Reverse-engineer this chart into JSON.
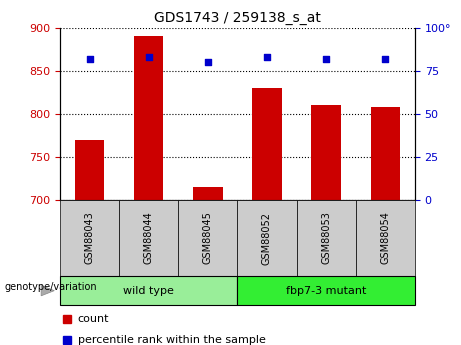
{
  "title": "GDS1743 / 259138_s_at",
  "categories": [
    "GSM88043",
    "GSM88044",
    "GSM88045",
    "GSM88052",
    "GSM88053",
    "GSM88054"
  ],
  "count_values": [
    770,
    890,
    715,
    830,
    810,
    808
  ],
  "percentile_values": [
    82,
    83,
    80,
    83,
    82,
    82
  ],
  "ylim_left": [
    700,
    900
  ],
  "ylim_right": [
    0,
    100
  ],
  "yticks_left": [
    700,
    750,
    800,
    850,
    900
  ],
  "yticks_right": [
    0,
    25,
    50,
    75,
    100
  ],
  "bar_color": "#cc0000",
  "dot_color": "#0000cc",
  "bar_bottom": 700,
  "groups": [
    {
      "label": "wild type",
      "start": 0,
      "end": 2,
      "color": "#99ee99"
    },
    {
      "label": "fbp7-3 mutant",
      "start": 3,
      "end": 5,
      "color": "#33ee33"
    }
  ],
  "group_label": "genotype/variation",
  "legend_count_label": "count",
  "legend_percentile_label": "percentile rank within the sample",
  "plot_bg_color": "#ffffff",
  "tick_label_color_left": "#cc0000",
  "tick_label_color_right": "#0000cc",
  "xlabel_area_bg": "#cccccc",
  "right_axis_top_label": "100°"
}
